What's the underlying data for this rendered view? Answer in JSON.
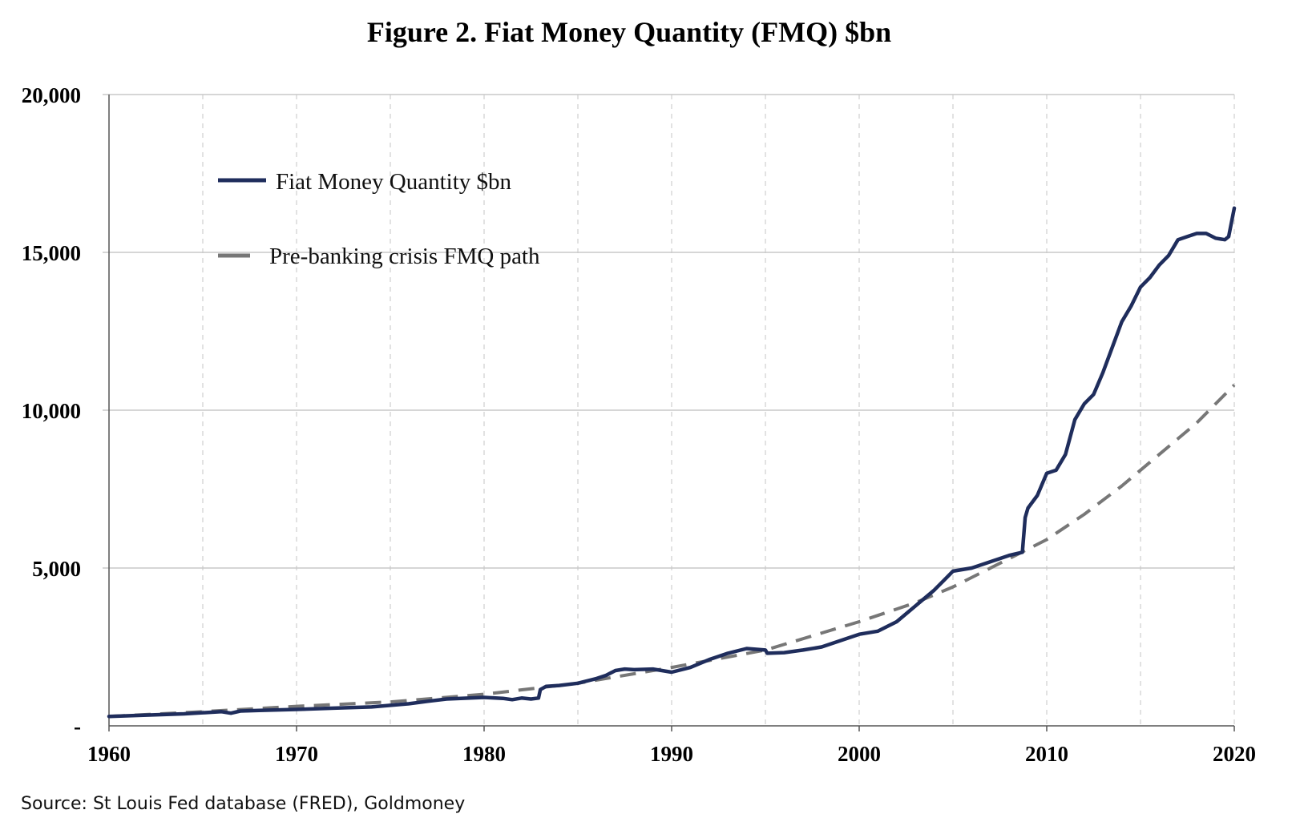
{
  "chart_data": {
    "type": "line",
    "title": "Figure 2. Fiat Money Quantity (FMQ)  $bn",
    "source": "Source: St Louis Fed  database (FRED), Goldmoney",
    "xlim": [
      1960,
      2020
    ],
    "ylim": [
      0,
      20000
    ],
    "x_ticks": [
      1960,
      1970,
      1980,
      1990,
      2000,
      2010,
      2020
    ],
    "x_tick_labels": [
      "1960",
      "1970",
      "1980",
      "1990",
      "2000",
      "2010",
      "2020"
    ],
    "y_ticks": [
      0,
      5000,
      10000,
      15000,
      20000
    ],
    "y_tick_labels": [
      "-",
      "5,000",
      "10,000",
      "15,000",
      "20,000"
    ],
    "grid": {
      "horizontal": true,
      "vertical_dashed_every": 5
    },
    "legend_placement": "top-left",
    "series": [
      {
        "name": "Fiat Money Quantity $bn",
        "color": "#1f2d5c",
        "style": "solid",
        "x": [
          1960,
          1962,
          1964,
          1966,
          1966.5,
          1967,
          1968,
          1970,
          1972,
          1974,
          1975,
          1976,
          1977,
          1978,
          1980,
          1981,
          1981.5,
          1982,
          1982.5,
          1982.9,
          1983,
          1983.3,
          1984,
          1985,
          1986,
          1986.5,
          1987,
          1987.5,
          1988,
          1989,
          1990,
          1991,
          1992,
          1993,
          1994,
          1995,
          1995.1,
          1996,
          1997,
          1998,
          1999,
          2000,
          2001,
          2002,
          2003,
          2004,
          2004.5,
          2005,
          2006,
          2007,
          2008,
          2008.7,
          2008.85,
          2009,
          2009.5,
          2010,
          2010.5,
          2011,
          2011.5,
          2012,
          2012.5,
          2013,
          2013.5,
          2014,
          2014.5,
          2015,
          2015.5,
          2016,
          2016.5,
          2017,
          2017.5,
          2018,
          2018.5,
          2019,
          2019.5,
          2019.7,
          2020
        ],
        "values": [
          300,
          340,
          380,
          450,
          400,
          470,
          490,
          520,
          560,
          600,
          650,
          700,
          780,
          850,
          900,
          870,
          830,
          880,
          850,
          880,
          1150,
          1250,
          1280,
          1350,
          1500,
          1600,
          1750,
          1800,
          1780,
          1800,
          1700,
          1850,
          2100,
          2300,
          2450,
          2400,
          2300,
          2320,
          2400,
          2500,
          2700,
          2900,
          3000,
          3300,
          3800,
          4300,
          4600,
          4900,
          5000,
          5200,
          5400,
          5500,
          6600,
          6900,
          7300,
          8000,
          8100,
          8600,
          9700,
          10200,
          10500,
          11200,
          12000,
          12800,
          13300,
          13900,
          14200,
          14600,
          14900,
          15400,
          15500,
          15600,
          15600,
          15450,
          15400,
          15500,
          16400
        ]
      },
      {
        "name": "Pre-banking crisis FMQ path",
        "color": "#777777",
        "style": "dashed",
        "x": [
          1960,
          1965,
          1970,
          1975,
          1980,
          1985,
          1990,
          1995,
          2000,
          2003,
          2005,
          2008,
          2010,
          2012,
          2014,
          2016,
          2018,
          2020
        ],
        "values": [
          300,
          450,
          620,
          760,
          1000,
          1350,
          1850,
          2400,
          3300,
          3900,
          4400,
          5300,
          5900,
          6700,
          7600,
          8600,
          9600,
          10800
        ]
      }
    ]
  }
}
